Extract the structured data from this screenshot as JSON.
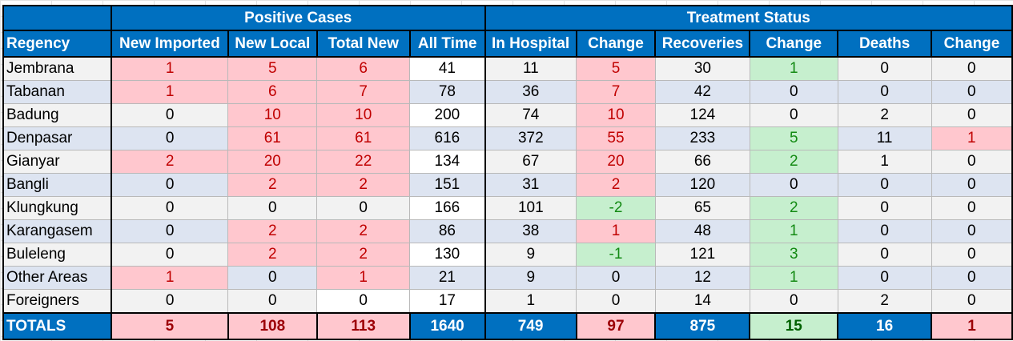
{
  "groups": {
    "positive": "Positive Cases",
    "treatment": "Treatment Status"
  },
  "headers": [
    "Regency",
    "New Imported",
    "New Local",
    "Total New",
    "All Time",
    "In Hospital",
    "Change",
    "Recoveries",
    "Change",
    "Deaths",
    "Change"
  ],
  "rows": [
    {
      "regency": "Jembrana",
      "new_imported": "1",
      "new_local": "5",
      "total_new": "6",
      "all_time": "41",
      "in_hospital": "11",
      "hosp_change": "5",
      "recoveries": "30",
      "rec_change": "1",
      "deaths": "0",
      "death_change": "0"
    },
    {
      "regency": "Tabanan",
      "new_imported": "1",
      "new_local": "6",
      "total_new": "7",
      "all_time": "78",
      "in_hospital": "36",
      "hosp_change": "7",
      "recoveries": "42",
      "rec_change": "0",
      "deaths": "0",
      "death_change": "0"
    },
    {
      "regency": "Badung",
      "new_imported": "0",
      "new_local": "10",
      "total_new": "10",
      "all_time": "200",
      "in_hospital": "74",
      "hosp_change": "10",
      "recoveries": "124",
      "rec_change": "0",
      "deaths": "2",
      "death_change": "0"
    },
    {
      "regency": "Denpasar",
      "new_imported": "0",
      "new_local": "61",
      "total_new": "61",
      "all_time": "616",
      "in_hospital": "372",
      "hosp_change": "55",
      "recoveries": "233",
      "rec_change": "5",
      "deaths": "11",
      "death_change": "1"
    },
    {
      "regency": "Gianyar",
      "new_imported": "2",
      "new_local": "20",
      "total_new": "22",
      "all_time": "134",
      "in_hospital": "67",
      "hosp_change": "20",
      "recoveries": "66",
      "rec_change": "2",
      "deaths": "1",
      "death_change": "0"
    },
    {
      "regency": "Bangli",
      "new_imported": "0",
      "new_local": "2",
      "total_new": "2",
      "all_time": "151",
      "in_hospital": "31",
      "hosp_change": "2",
      "recoveries": "120",
      "rec_change": "0",
      "deaths": "0",
      "death_change": "0"
    },
    {
      "regency": "Klungkung",
      "new_imported": "0",
      "new_local": "0",
      "total_new": "0",
      "all_time": "166",
      "in_hospital": "101",
      "hosp_change": "-2",
      "recoveries": "65",
      "rec_change": "2",
      "deaths": "0",
      "death_change": "0"
    },
    {
      "regency": "Karangasem",
      "new_imported": "0",
      "new_local": "2",
      "total_new": "2",
      "all_time": "86",
      "in_hospital": "38",
      "hosp_change": "1",
      "recoveries": "48",
      "rec_change": "1",
      "deaths": "0",
      "death_change": "0"
    },
    {
      "regency": "Buleleng",
      "new_imported": "0",
      "new_local": "2",
      "total_new": "2",
      "all_time": "130",
      "in_hospital": "9",
      "hosp_change": "-1",
      "recoveries": "121",
      "rec_change": "3",
      "deaths": "0",
      "death_change": "0"
    },
    {
      "regency": "Other Areas",
      "new_imported": "1",
      "new_local": "0",
      "total_new": "1",
      "all_time": "21",
      "in_hospital": "9",
      "hosp_change": "0",
      "recoveries": "12",
      "rec_change": "1",
      "deaths": "0",
      "death_change": "0"
    },
    {
      "regency": "Foreigners",
      "new_imported": "0",
      "new_local": "0",
      "total_new": "0",
      "all_time": "17",
      "in_hospital": "1",
      "hosp_change": "0",
      "recoveries": "14",
      "rec_change": "0",
      "deaths": "2",
      "death_change": "0"
    }
  ],
  "totals": {
    "label": "TOTALS",
    "new_imported": "5",
    "new_local": "108",
    "total_new": "113",
    "all_time": "1640",
    "in_hospital": "749",
    "hosp_change": "97",
    "recoveries": "875",
    "rec_change": "15",
    "deaths": "16",
    "death_change": "1"
  },
  "colors": {
    "header_blue": "#0070c0",
    "increase_fill": "#ffc7ce",
    "increase_text": "#c00000",
    "decrease_fill": "#c6efce",
    "decrease_text": "#138a13",
    "row_gray": "#f2f2f2",
    "row_blue": "#dde4f1"
  }
}
